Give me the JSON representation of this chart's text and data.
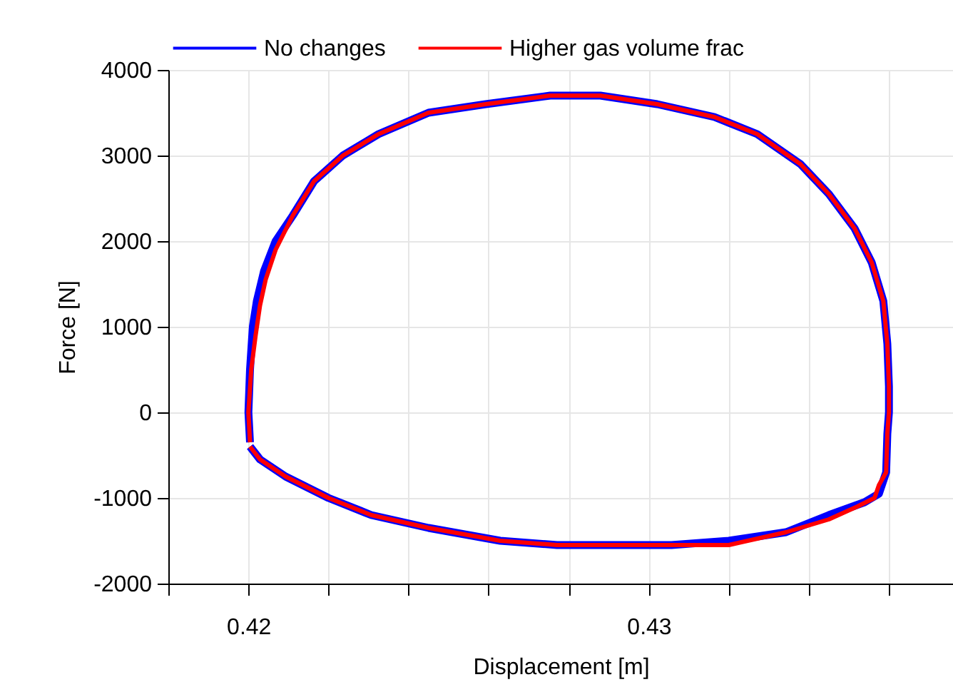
{
  "chart_data": {
    "type": "line",
    "xlabel": "Displacement [m]",
    "ylabel": "Force [N]",
    "xlim": [
      0.418,
      0.4376
    ],
    "ylim": [
      -2000,
      4000
    ],
    "xticks": [
      {
        "value": 0.418,
        "label": null
      },
      0.42,
      {
        "value": 0.422,
        "label": null
      },
      {
        "value": 0.424,
        "label": null
      },
      {
        "value": 0.426,
        "label": null
      },
      {
        "value": 0.428,
        "label": null
      },
      0.43,
      {
        "value": 0.432,
        "label": null
      },
      {
        "value": 0.434,
        "label": null
      },
      {
        "value": 0.436,
        "label": null
      }
    ],
    "yticks": [
      -2000,
      -1000,
      0,
      1000,
      2000,
      3000,
      4000
    ],
    "grid": true,
    "legend": "top",
    "marker": "none",
    "line_style": "solid",
    "series": [
      {
        "name": "No changes",
        "color": "#0000ff",
        "x": [
          0.42004,
          0.42,
          0.42004,
          0.42011,
          0.42021,
          0.42039,
          0.42068,
          0.42111,
          0.42164,
          0.42236,
          0.42325,
          0.4245,
          0.42593,
          0.42754,
          0.42879,
          0.43021,
          0.43164,
          0.43271,
          0.43379,
          0.4345,
          0.43514,
          0.43557,
          0.43586,
          0.43596,
          0.436,
          0.436,
          0.43596,
          0.43593,
          0.43575,
          0.43539,
          0.4345,
          0.43343,
          0.432,
          0.43057,
          0.42914,
          0.42771,
          0.42629,
          0.4245,
          0.42307,
          0.422,
          0.42093,
          0.42029,
          0.42004
        ],
        "values": [
          -350,
          0,
          500,
          1000,
          1300,
          1650,
          2000,
          2300,
          2700,
          3000,
          3250,
          3500,
          3600,
          3700,
          3700,
          3600,
          3450,
          3250,
          2900,
          2550,
          2150,
          1750,
          1300,
          800,
          300,
          0,
          -250,
          -700,
          -950,
          -1050,
          -1200,
          -1400,
          -1500,
          -1550,
          -1550,
          -1550,
          -1500,
          -1350,
          -1200,
          -1000,
          -750,
          -550,
          -400
        ]
      },
      {
        "name": "Higher gas volume frac",
        "color": "#ff0000",
        "x": [
          0.42004,
          0.42,
          0.42007,
          0.42018,
          0.42029,
          0.42043,
          0.42068,
          0.42111,
          0.42164,
          0.42236,
          0.42325,
          0.4245,
          0.42593,
          0.42754,
          0.42879,
          0.43021,
          0.43164,
          0.43271,
          0.43379,
          0.4345,
          0.43514,
          0.43557,
          0.43586,
          0.43596,
          0.436,
          0.436,
          0.43596,
          0.43593,
          0.43575,
          0.43564,
          0.43521,
          0.4345,
          0.43343,
          0.432,
          0.43057,
          0.42914,
          0.42771,
          0.42629,
          0.4245,
          0.42307,
          0.422,
          0.42093,
          0.42029,
          0.42004
        ],
        "values": [
          -350,
          0,
          500,
          900,
          1250,
          1550,
          1900,
          2300,
          2700,
          3000,
          3250,
          3500,
          3600,
          3700,
          3700,
          3600,
          3450,
          3250,
          2900,
          2550,
          2150,
          1750,
          1300,
          800,
          300,
          0,
          -250,
          -700,
          -850,
          -1000,
          -1100,
          -1250,
          -1400,
          -1550,
          -1550,
          -1550,
          -1550,
          -1500,
          -1350,
          -1200,
          -1000,
          -750,
          -550,
          -400
        ]
      }
    ]
  }
}
